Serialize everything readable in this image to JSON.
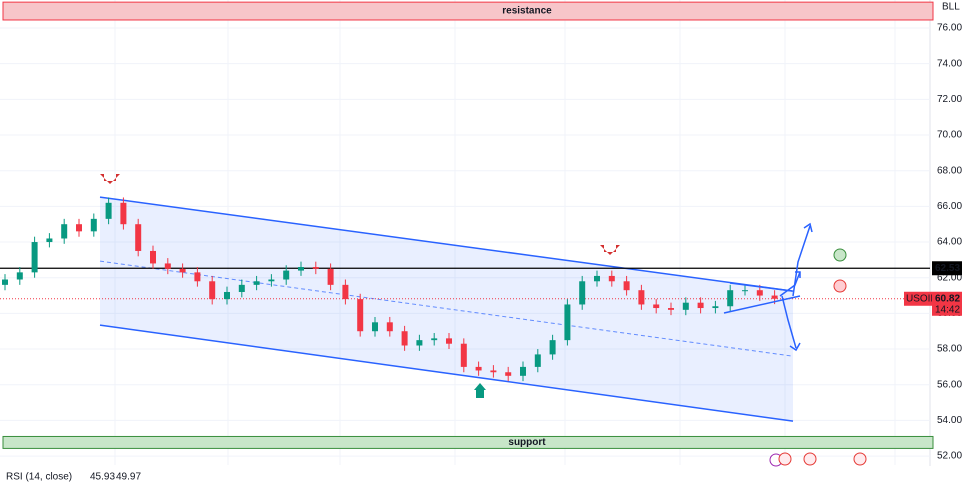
{
  "chart_data": {
    "type": "candlestick",
    "unit": "BLL",
    "open": [
      61.6,
      61.9,
      62.3,
      64.0,
      64.2,
      65.0,
      64.6,
      65.3,
      66.2,
      65.0,
      63.5,
      62.8,
      62.5,
      62.3,
      61.8,
      60.8,
      61.2,
      61.6,
      61.8,
      61.9,
      62.4,
      62.6,
      62.5,
      61.6,
      60.8,
      59.0,
      59.5,
      59.0,
      58.2,
      58.5,
      58.6,
      58.3,
      57.0,
      56.8,
      56.7,
      56.5,
      57.0,
      57.7,
      58.5,
      60.5,
      61.8,
      62.1,
      61.8,
      61.3,
      60.5,
      60.3,
      60.2,
      60.6,
      60.3,
      60.4,
      61.3,
      61.3,
      61.0
    ],
    "high": [
      62.2,
      62.6,
      64.3,
      64.5,
      65.3,
      65.3,
      65.6,
      66.5,
      66.5,
      65.3,
      63.8,
      63.1,
      62.8,
      62.6,
      62.1,
      61.5,
      61.9,
      62.1,
      62.2,
      62.7,
      62.9,
      62.9,
      62.8,
      61.9,
      61.1,
      59.8,
      59.8,
      59.3,
      58.8,
      58.9,
      58.9,
      58.6,
      57.3,
      57.1,
      57.0,
      57.3,
      58.0,
      58.8,
      60.8,
      62.1,
      62.4,
      62.4,
      62.1,
      61.6,
      60.8,
      60.6,
      60.9,
      60.9,
      60.7,
      61.6,
      61.6,
      61.6,
      61.3
    ],
    "low": [
      61.3,
      61.6,
      62.0,
      63.7,
      63.9,
      64.3,
      64.3,
      65.0,
      64.7,
      63.2,
      62.5,
      62.2,
      62.0,
      61.5,
      60.5,
      60.5,
      60.9,
      61.3,
      61.5,
      61.6,
      62.1,
      62.2,
      61.3,
      60.5,
      58.7,
      58.7,
      58.7,
      57.9,
      57.9,
      58.2,
      58.0,
      56.7,
      56.5,
      56.4,
      56.2,
      56.2,
      56.7,
      57.4,
      58.2,
      60.2,
      61.5,
      61.5,
      61.0,
      60.2,
      60.0,
      59.9,
      59.9,
      60.0,
      60.0,
      60.1,
      61.0,
      60.7,
      60.52
    ],
    "close": [
      61.9,
      62.3,
      64.0,
      64.2,
      65.0,
      64.6,
      65.3,
      66.2,
      65.0,
      63.5,
      62.8,
      62.5,
      62.3,
      61.8,
      60.8,
      61.2,
      61.6,
      61.8,
      61.9,
      62.4,
      62.6,
      62.5,
      61.6,
      60.8,
      59.0,
      59.5,
      59.0,
      58.2,
      58.5,
      58.6,
      58.3,
      57.0,
      56.8,
      56.7,
      56.5,
      57.0,
      57.7,
      58.5,
      60.5,
      61.8,
      62.1,
      61.8,
      61.3,
      60.5,
      60.3,
      60.2,
      60.6,
      60.3,
      60.4,
      61.3,
      61.3,
      61.0,
      60.82
    ],
    "up_color": "#089981",
    "down_color": "#f23645",
    "ylim": [
      51.5,
      77.57
    ],
    "yticks": [
      {
        "value": 52,
        "label": "52.00"
      },
      {
        "value": 54,
        "label": "54.00"
      },
      {
        "value": 56,
        "label": "56.00"
      },
      {
        "value": 58,
        "label": "58.00"
      },
      {
        "value": 60,
        "label": "60.00"
      },
      {
        "value": 62,
        "label": "62.00"
      },
      {
        "value": 64,
        "label": "64.00"
      },
      {
        "value": 66,
        "label": "66.00"
      },
      {
        "value": 68,
        "label": "68.00"
      },
      {
        "value": 70,
        "label": "70.00"
      },
      {
        "value": 72,
        "label": "72.00"
      },
      {
        "value": 74,
        "label": "74.00"
      },
      {
        "value": 76,
        "label": "76.00"
      }
    ],
    "grid": true,
    "zones": [
      {
        "label": "resistance",
        "range": [
          76.45,
          77.45
        ],
        "color": "#f7c5c9",
        "border": "#f23645",
        "text_color": "#9c27b0"
      },
      {
        "label": "support",
        "range": [
          52.43,
          53.1
        ],
        "color": "#c8e6c9",
        "border": "#388e3c",
        "text_color": "#9c27b0"
      }
    ],
    "channel": {
      "upper": [
        66.52,
        61.25
      ],
      "middle": [
        62.93,
        57.6
      ],
      "lower": [
        59.34,
        53.96
      ],
      "color": "#2962ff"
    },
    "level": {
      "value": 62.53,
      "color": "#000000"
    },
    "last_price": {
      "symbol": "USOIL",
      "value": 60.82,
      "time": "14:42",
      "color": "#f23645"
    },
    "indicator": {
      "label": "RSI (14, close)",
      "values": [
        45.93,
        49.97
      ],
      "colors": [
        "#2962ff",
        "#f57c00"
      ]
    }
  }
}
